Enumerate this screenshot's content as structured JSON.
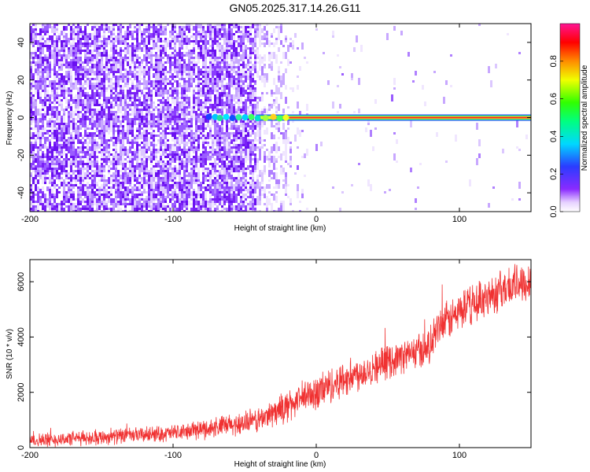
{
  "title": "GN05.2025.317.14.26.G11",
  "chart_data": [
    {
      "type": "heatmap",
      "xlabel": "Height of straight line (km)",
      "ylabel": "Frequency (Hz)",
      "xlim": [
        -200,
        150
      ],
      "ylim": [
        -50,
        50
      ],
      "xticks": [
        -200,
        -100,
        0,
        100
      ],
      "yticks": [
        -40,
        -20,
        0,
        20,
        40
      ],
      "colorbar": {
        "label": "Normalized spectral amplitude",
        "range": [
          0,
          1
        ],
        "ticks": [
          0.0,
          0.2,
          0.4,
          0.6,
          0.8
        ]
      },
      "features": {
        "noise_extent_x": [
          -200,
          -5
        ],
        "dense_noise_extent_x": [
          -200,
          -42
        ],
        "carrier_start_x": -75,
        "carrier_frequency": 0
      }
    },
    {
      "type": "line",
      "xlabel": "Height of straight line (km)",
      "ylabel": "SNR (10 * v/v)",
      "xlim": [
        -200,
        150
      ],
      "ylim": [
        0,
        6800
      ],
      "xticks": [
        -200,
        -100,
        0,
        100
      ],
      "yticks": [
        0,
        2000,
        4000,
        6000
      ],
      "color": "#f03232",
      "trend": [
        [
          -200,
          250
        ],
        [
          -150,
          380
        ],
        [
          -100,
          520
        ],
        [
          -60,
          800
        ],
        [
          -40,
          1000
        ],
        [
          -20,
          1500
        ],
        [
          0,
          2000
        ],
        [
          20,
          2500
        ],
        [
          40,
          2900
        ],
        [
          60,
          3300
        ],
        [
          75,
          3550
        ],
        [
          80,
          3700
        ],
        [
          85,
          4300
        ],
        [
          100,
          4900
        ],
        [
          120,
          5500
        ],
        [
          150,
          6100
        ]
      ],
      "noise_amplitude": [
        [
          -200,
          300
        ],
        [
          -100,
          350
        ],
        [
          -40,
          550
        ],
        [
          0,
          800
        ],
        [
          60,
          700
        ],
        [
          85,
          850
        ],
        [
          150,
          900
        ]
      ]
    }
  ]
}
